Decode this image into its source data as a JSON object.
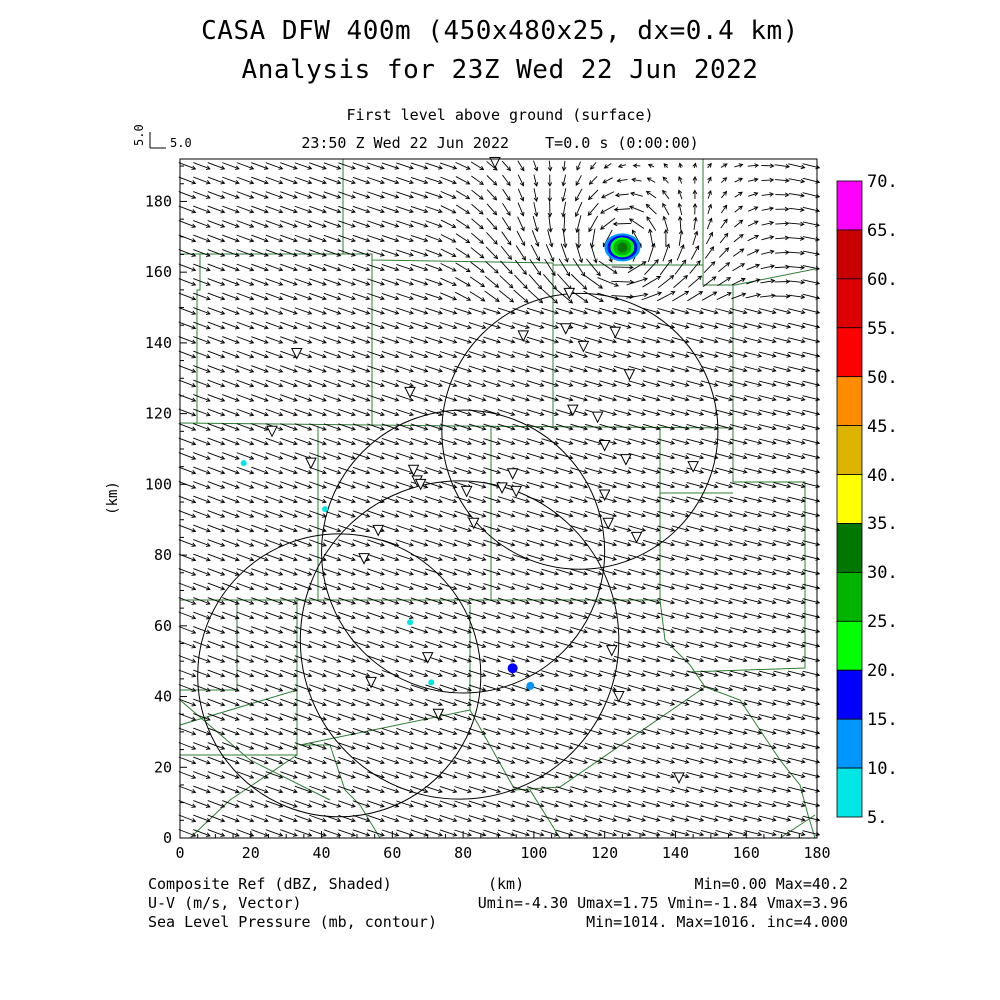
{
  "titles": {
    "line1": "CASA DFW 400m (450x480x25, dx=0.4 km)",
    "line2": "Analysis for 23Z Wed 22 Jun 2022",
    "level": "First level above ground (surface)",
    "time": "23:50 Z Wed 22 Jun 2022    T=0.0 s (0:00:00)",
    "vector_ref_value": "5.0",
    "vector_ref_label": "5.0"
  },
  "footer": {
    "left1": "Composite Ref (dBZ, Shaded)",
    "left2": "U-V (m/s, Vector)",
    "left3": "Sea Level Pressure (mb, contour)",
    "center_xlabel": "(km)",
    "right1": "Min=0.00 Max=40.2",
    "right2": "Umin=-4.30 Umax=1.75 Vmin=-1.84 Vmax=3.96",
    "right3": "Min=1014. Max=1016. inc=4.000"
  },
  "colorbar": {
    "labels": [
      "70.",
      "65.",
      "60.",
      "55.",
      "50.",
      "45.",
      "40.",
      "35.",
      "30.",
      "25.",
      "20.",
      "15.",
      "10.",
      "5."
    ],
    "colors": [
      "#ff00ff",
      "#c80000",
      "#dc0000",
      "#ff0000",
      "#ff8c00",
      "#dcb400",
      "#ffff00",
      "#007800",
      "#00b400",
      "#00ff00",
      "#0000ff",
      "#0096ff",
      "#00e6e6"
    ]
  },
  "chart_data": {
    "type": "map",
    "xlabel": "",
    "ylabel": "(km)",
    "xlim": [
      0,
      180
    ],
    "ylim": [
      0,
      192
    ],
    "xticks": [
      0,
      20,
      40,
      60,
      80,
      100,
      120,
      140,
      160,
      180
    ],
    "yticks": [
      0,
      20,
      40,
      60,
      80,
      100,
      120,
      140,
      160,
      180
    ],
    "radar_rings": [
      {
        "cx": 113,
        "cy": 115,
        "r": 39
      },
      {
        "cx": 80,
        "cy": 81,
        "r": 40
      },
      {
        "cx": 45,
        "cy": 46,
        "r": 40
      },
      {
        "cx": 79,
        "cy": 56,
        "r": 45
      }
    ],
    "reflectivity_cells": [
      {
        "x": 125,
        "y": 167,
        "dbz": 30
      },
      {
        "x": 94,
        "y": 48,
        "dbz": 15
      },
      {
        "x": 99,
        "y": 43,
        "dbz": 10
      },
      {
        "x": 18,
        "y": 106,
        "dbz": 8
      },
      {
        "x": 41,
        "y": 93,
        "dbz": 8
      },
      {
        "x": 71,
        "y": 44,
        "dbz": 6
      },
      {
        "x": 65,
        "y": 61,
        "dbz": 6
      }
    ],
    "stations": [
      [
        89,
        191
      ],
      [
        110,
        154
      ],
      [
        109,
        144
      ],
      [
        123,
        143
      ],
      [
        97,
        142
      ],
      [
        114,
        139
      ],
      [
        33,
        137
      ],
      [
        127,
        131
      ],
      [
        65,
        126
      ],
      [
        111,
        121
      ],
      [
        118,
        119
      ],
      [
        26,
        115
      ],
      [
        120,
        111
      ],
      [
        126,
        107
      ],
      [
        37,
        106
      ],
      [
        66,
        104
      ],
      [
        145,
        105
      ],
      [
        67,
        101
      ],
      [
        94,
        103
      ],
      [
        68,
        100
      ],
      [
        81,
        98
      ],
      [
        91,
        99
      ],
      [
        95,
        98
      ],
      [
        120,
        97
      ],
      [
        83,
        89
      ],
      [
        121,
        89
      ],
      [
        129,
        85
      ],
      [
        56,
        87
      ],
      [
        52,
        79
      ],
      [
        122,
        53
      ],
      [
        70,
        51
      ],
      [
        54,
        44
      ],
      [
        124,
        40
      ],
      [
        73,
        35
      ],
      [
        141,
        17
      ]
    ],
    "wind_max": 3.96
  }
}
